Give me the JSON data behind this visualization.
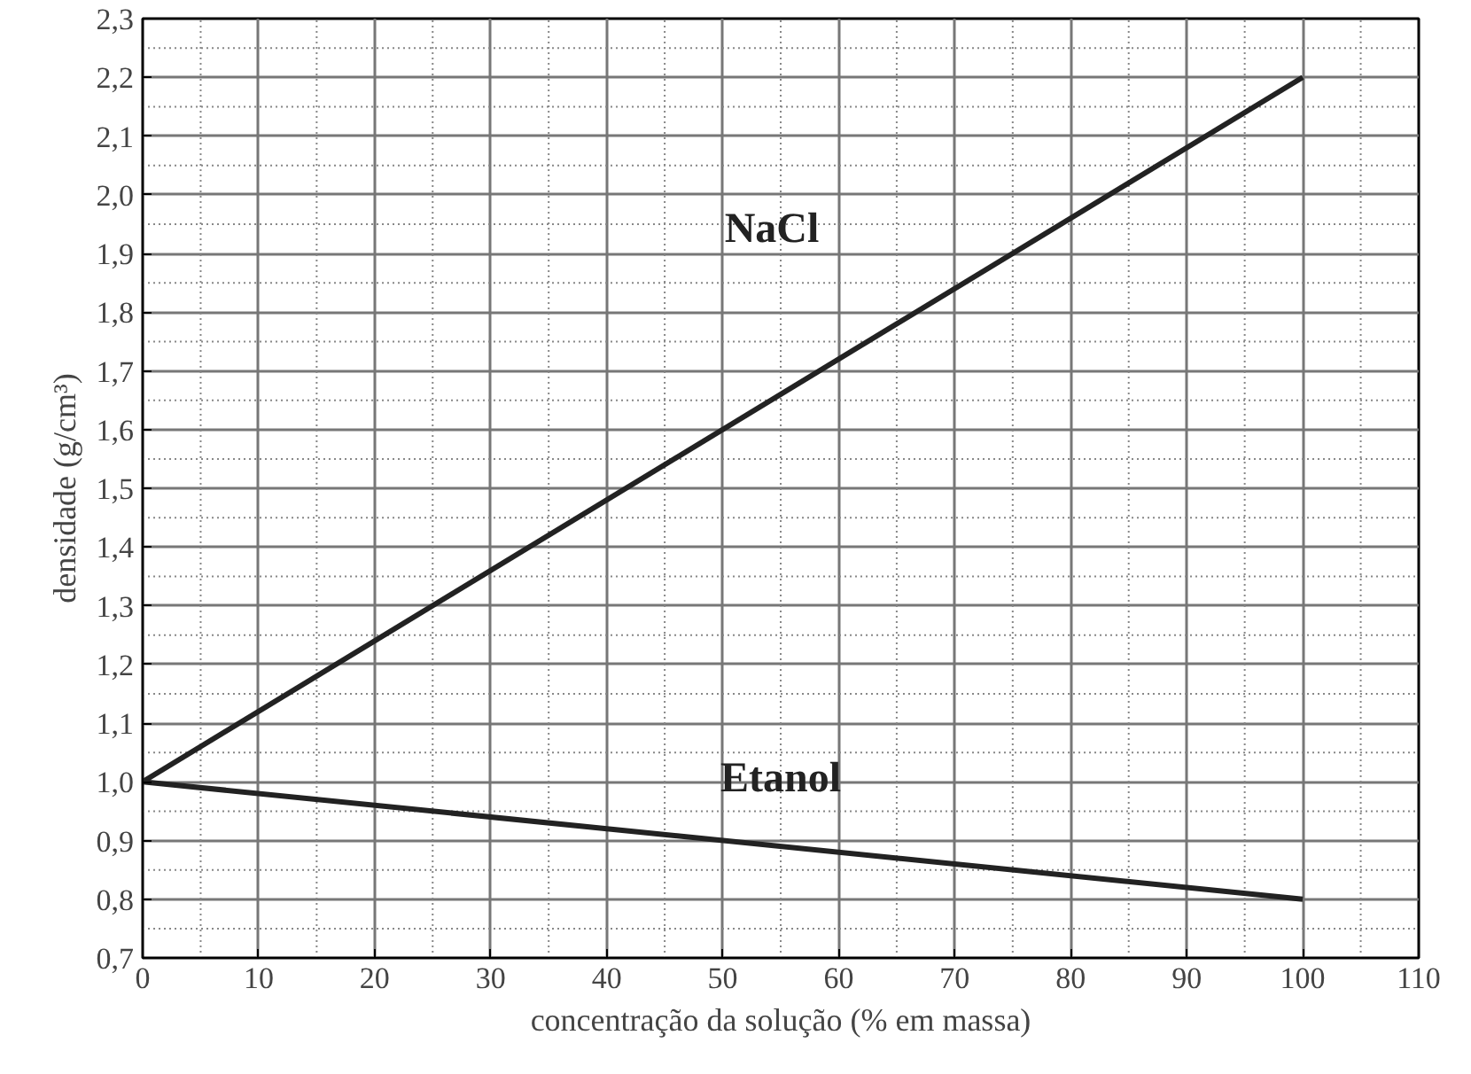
{
  "chart_data": {
    "type": "line",
    "xlabel": "concentração da solução (% em massa)",
    "ylabel": "densidade (g/cm³)",
    "x": [
      0,
      100
    ],
    "series": [
      {
        "name": "NaCl",
        "color": "#222222",
        "values": [
          1.0,
          2.2
        ]
      },
      {
        "name": "Etanol",
        "color": "#222222",
        "values": [
          1.0,
          0.8
        ]
      }
    ],
    "xlim": [
      0,
      110
    ],
    "xticks": [
      0,
      10,
      20,
      30,
      40,
      50,
      60,
      70,
      80,
      90,
      100,
      110
    ],
    "ylim": [
      0.7,
      2.3
    ],
    "yticks": [
      {
        "value": 0.7,
        "label": "0,7"
      },
      {
        "value": 0.8,
        "label": "0,8"
      },
      {
        "value": 0.9,
        "label": "0,9"
      },
      {
        "value": 1.0,
        "label": "1,0"
      },
      {
        "value": 1.1,
        "label": "1,1"
      },
      {
        "value": 1.2,
        "label": "1,2"
      },
      {
        "value": 1.3,
        "label": "1,3"
      },
      {
        "value": 1.4,
        "label": "1,4"
      },
      {
        "value": 1.5,
        "label": "1,5"
      },
      {
        "value": 1.6,
        "label": "1,6"
      },
      {
        "value": 1.7,
        "label": "1,7"
      },
      {
        "value": 1.8,
        "label": "1,8"
      },
      {
        "value": 1.9,
        "label": "1,9"
      },
      {
        "value": 2.0,
        "label": "2,0"
      },
      {
        "value": 2.1,
        "label": "2,1"
      },
      {
        "value": 2.2,
        "label": "2,2"
      },
      {
        "value": 2.3,
        "label": "2,3"
      }
    ],
    "grid": true,
    "marker": "none",
    "line_style": "solid",
    "legend": false
  }
}
